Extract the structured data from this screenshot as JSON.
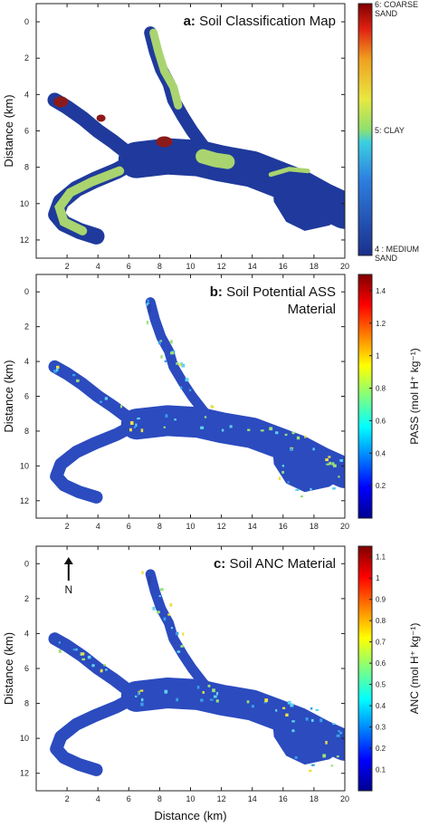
{
  "chart_data": [
    {
      "type": "heatmap",
      "panel_letter": "a:",
      "title_lines": [
        "Soil Classification Map"
      ],
      "ylabel": "Distance (km)",
      "xlabel": "",
      "xlim": [
        0,
        20
      ],
      "ylim": [
        13,
        -1
      ],
      "x_ticks": [
        2,
        4,
        6,
        8,
        10,
        12,
        14,
        16,
        18,
        20
      ],
      "y_ticks": [
        0,
        2,
        4,
        6,
        8,
        10,
        12
      ],
      "colorbar": {
        "label": "",
        "ticks": [
          {
            "label": "6: COARSE\nSAND",
            "frac": 1.0
          },
          {
            "label": "5: CLAY",
            "frac": 0.5
          },
          {
            "label": "4 : MEDIUM\nSAND",
            "frac": 0.0
          }
        ]
      },
      "classes": [
        {
          "name": "medium-sand",
          "value": 4,
          "color": "#1f3a9c"
        },
        {
          "name": "clay",
          "value": 5,
          "color": "#a9d46f"
        },
        {
          "name": "coarse-sand",
          "value": 6,
          "color": "#8b1a1a"
        }
      ],
      "north_arrow": false
    },
    {
      "type": "heatmap",
      "panel_letter": "b:",
      "title_lines": [
        "Soil Potential ASS",
        "Material"
      ],
      "ylabel": "Distance (km)",
      "xlabel": "",
      "xlim": [
        0,
        20
      ],
      "ylim": [
        13,
        -1
      ],
      "x_ticks": [
        2,
        4,
        6,
        8,
        10,
        12,
        14,
        16,
        18,
        20
      ],
      "y_ticks": [
        0,
        2,
        4,
        6,
        8,
        10,
        12
      ],
      "colorbar": {
        "label": "PASS (mol H⁺ kg⁻¹)",
        "range": [
          0,
          1.5
        ],
        "ticks": [
          0.2,
          0.4,
          0.6,
          0.8,
          1,
          1.2,
          1.4
        ]
      },
      "north_arrow": false
    },
    {
      "type": "heatmap",
      "panel_letter": "c:",
      "title_lines": [
        "Soil ANC Material"
      ],
      "ylabel": "Distance (km)",
      "xlabel": "Distance (km)",
      "xlim": [
        0,
        20
      ],
      "ylim": [
        13,
        -1
      ],
      "x_ticks": [
        2,
        4,
        6,
        8,
        10,
        12,
        14,
        16,
        18,
        20
      ],
      "y_ticks": [
        0,
        2,
        4,
        6,
        8,
        10,
        12
      ],
      "colorbar": {
        "label": "ANC (mol H⁺ kg⁻¹)",
        "range": [
          0,
          1.15
        ],
        "ticks": [
          0.1,
          0.2,
          0.3,
          0.4,
          0.5,
          0.6,
          0.7,
          0.8,
          0.9,
          1,
          1.1
        ]
      },
      "north_arrow": true,
      "north_label": "N"
    }
  ]
}
